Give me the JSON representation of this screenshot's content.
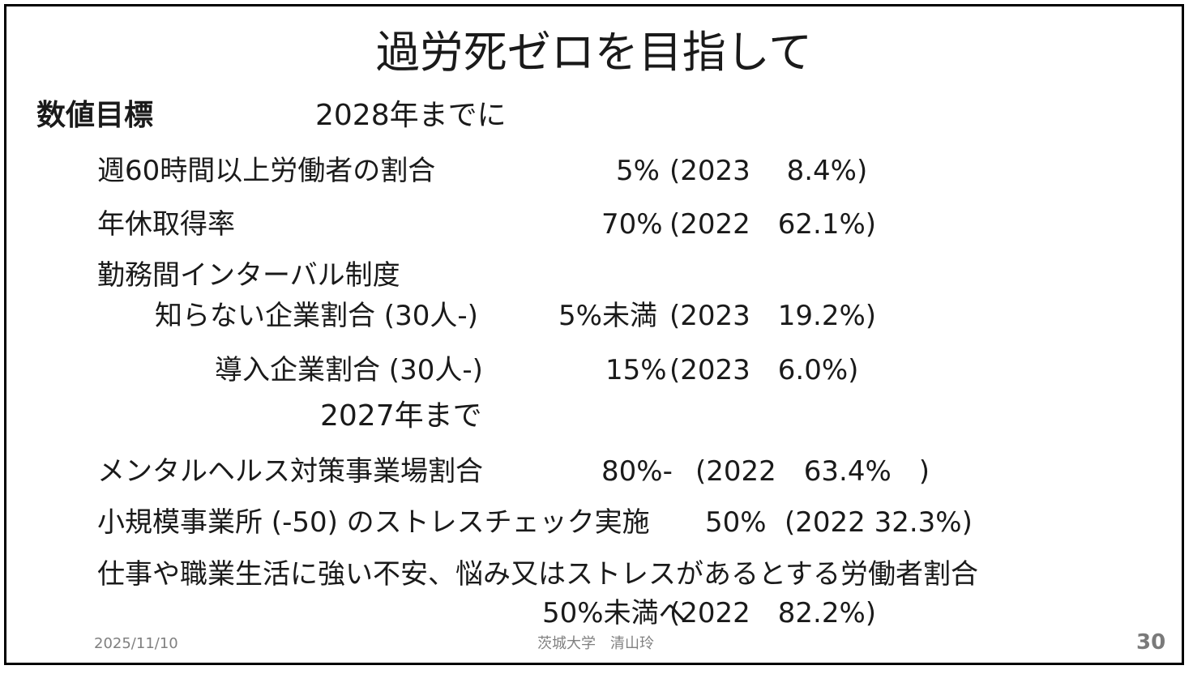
{
  "slide": {
    "title": "過労死ゼロを目指して",
    "target_heading": "数値目標",
    "target_2028": "2028年までに",
    "rows_2028": [
      {
        "label": "週60時間以上労働者の割合",
        "target": "5%",
        "baseline": "(2023　 8.4%)"
      },
      {
        "label": "年休取得率",
        "target": "70%",
        "baseline": "(2022　62.1%)"
      },
      {
        "label": "勤務間インターバル制度"
      },
      {
        "label": "知らない企業割合 (30人-)",
        "target": "5%未満",
        "baseline": "(2023　19.2%)"
      },
      {
        "label": "導入企業割合 (30人-)",
        "target": "15%",
        "baseline": "(2023　6.0%)"
      }
    ],
    "target_2027": "2027年まで",
    "rows_2027": [
      {
        "label": "メンタルヘルス対策事業場割合",
        "target": "80%-",
        "baseline": "(2022　63.4%　)"
      },
      {
        "label": "小規模事業所 (-50) のストレスチェック実施",
        "target": "50%",
        "baseline": "(2022 32.3%)"
      },
      {
        "label": "仕事や職業生活に強い不安、悩み又はストレスがあるとする労働者割合",
        "target": "50%未満へ",
        "baseline": "(2022　82.2%)"
      }
    ],
    "footer": {
      "date": "2025/11/10",
      "author": "茨城大学　清山玲",
      "page": "30"
    }
  }
}
